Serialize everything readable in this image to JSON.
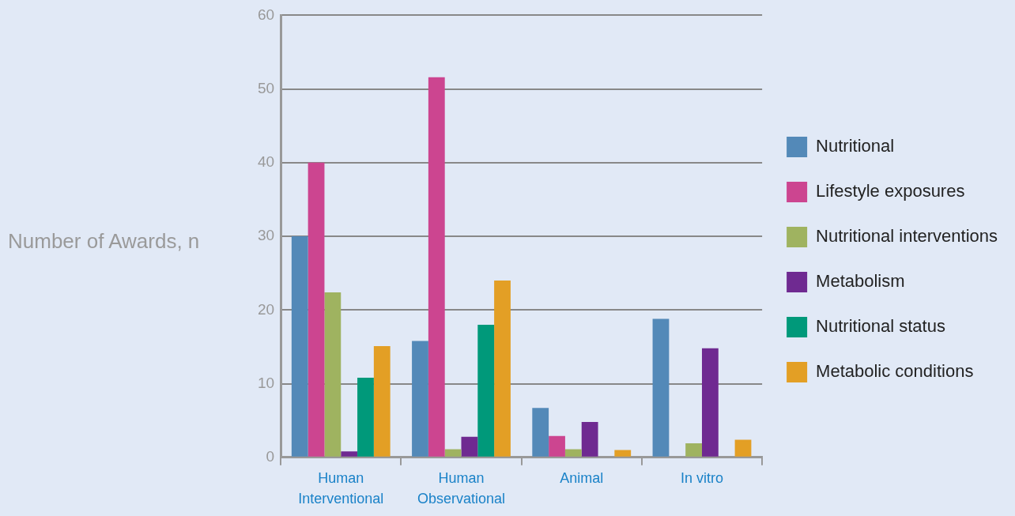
{
  "chart_data": {
    "type": "bar",
    "ylabel": "Number of Awards, n",
    "categories": [
      "Human Interventional",
      "Human Observational",
      "Animal",
      "In vitro"
    ],
    "series": [
      {
        "name": "Nutritional",
        "color": "#5389b8",
        "values": [
          30,
          15.8,
          6.7,
          18.8
        ]
      },
      {
        "name": "Lifestyle exposures",
        "color": "#cc4590",
        "values": [
          40,
          51.6,
          2.9,
          0
        ]
      },
      {
        "name": "Nutritional interventions",
        "color": "#9fb360",
        "values": [
          22.4,
          1.1,
          1.1,
          1.9
        ]
      },
      {
        "name": "Metabolism",
        "color": "#6f2a91",
        "values": [
          0.8,
          2.8,
          4.8,
          14.8
        ]
      },
      {
        "name": "Nutritional status",
        "color": "#00997a",
        "values": [
          10.8,
          18,
          0,
          0
        ]
      },
      {
        "name": "Metabolic conditions",
        "color": "#e39f25",
        "values": [
          15.1,
          24,
          1,
          2.4
        ]
      }
    ],
    "ylim": [
      0,
      60
    ],
    "yticks": [
      0,
      10,
      20,
      30,
      40,
      50,
      60
    ],
    "grid": "y",
    "legend": "right"
  }
}
